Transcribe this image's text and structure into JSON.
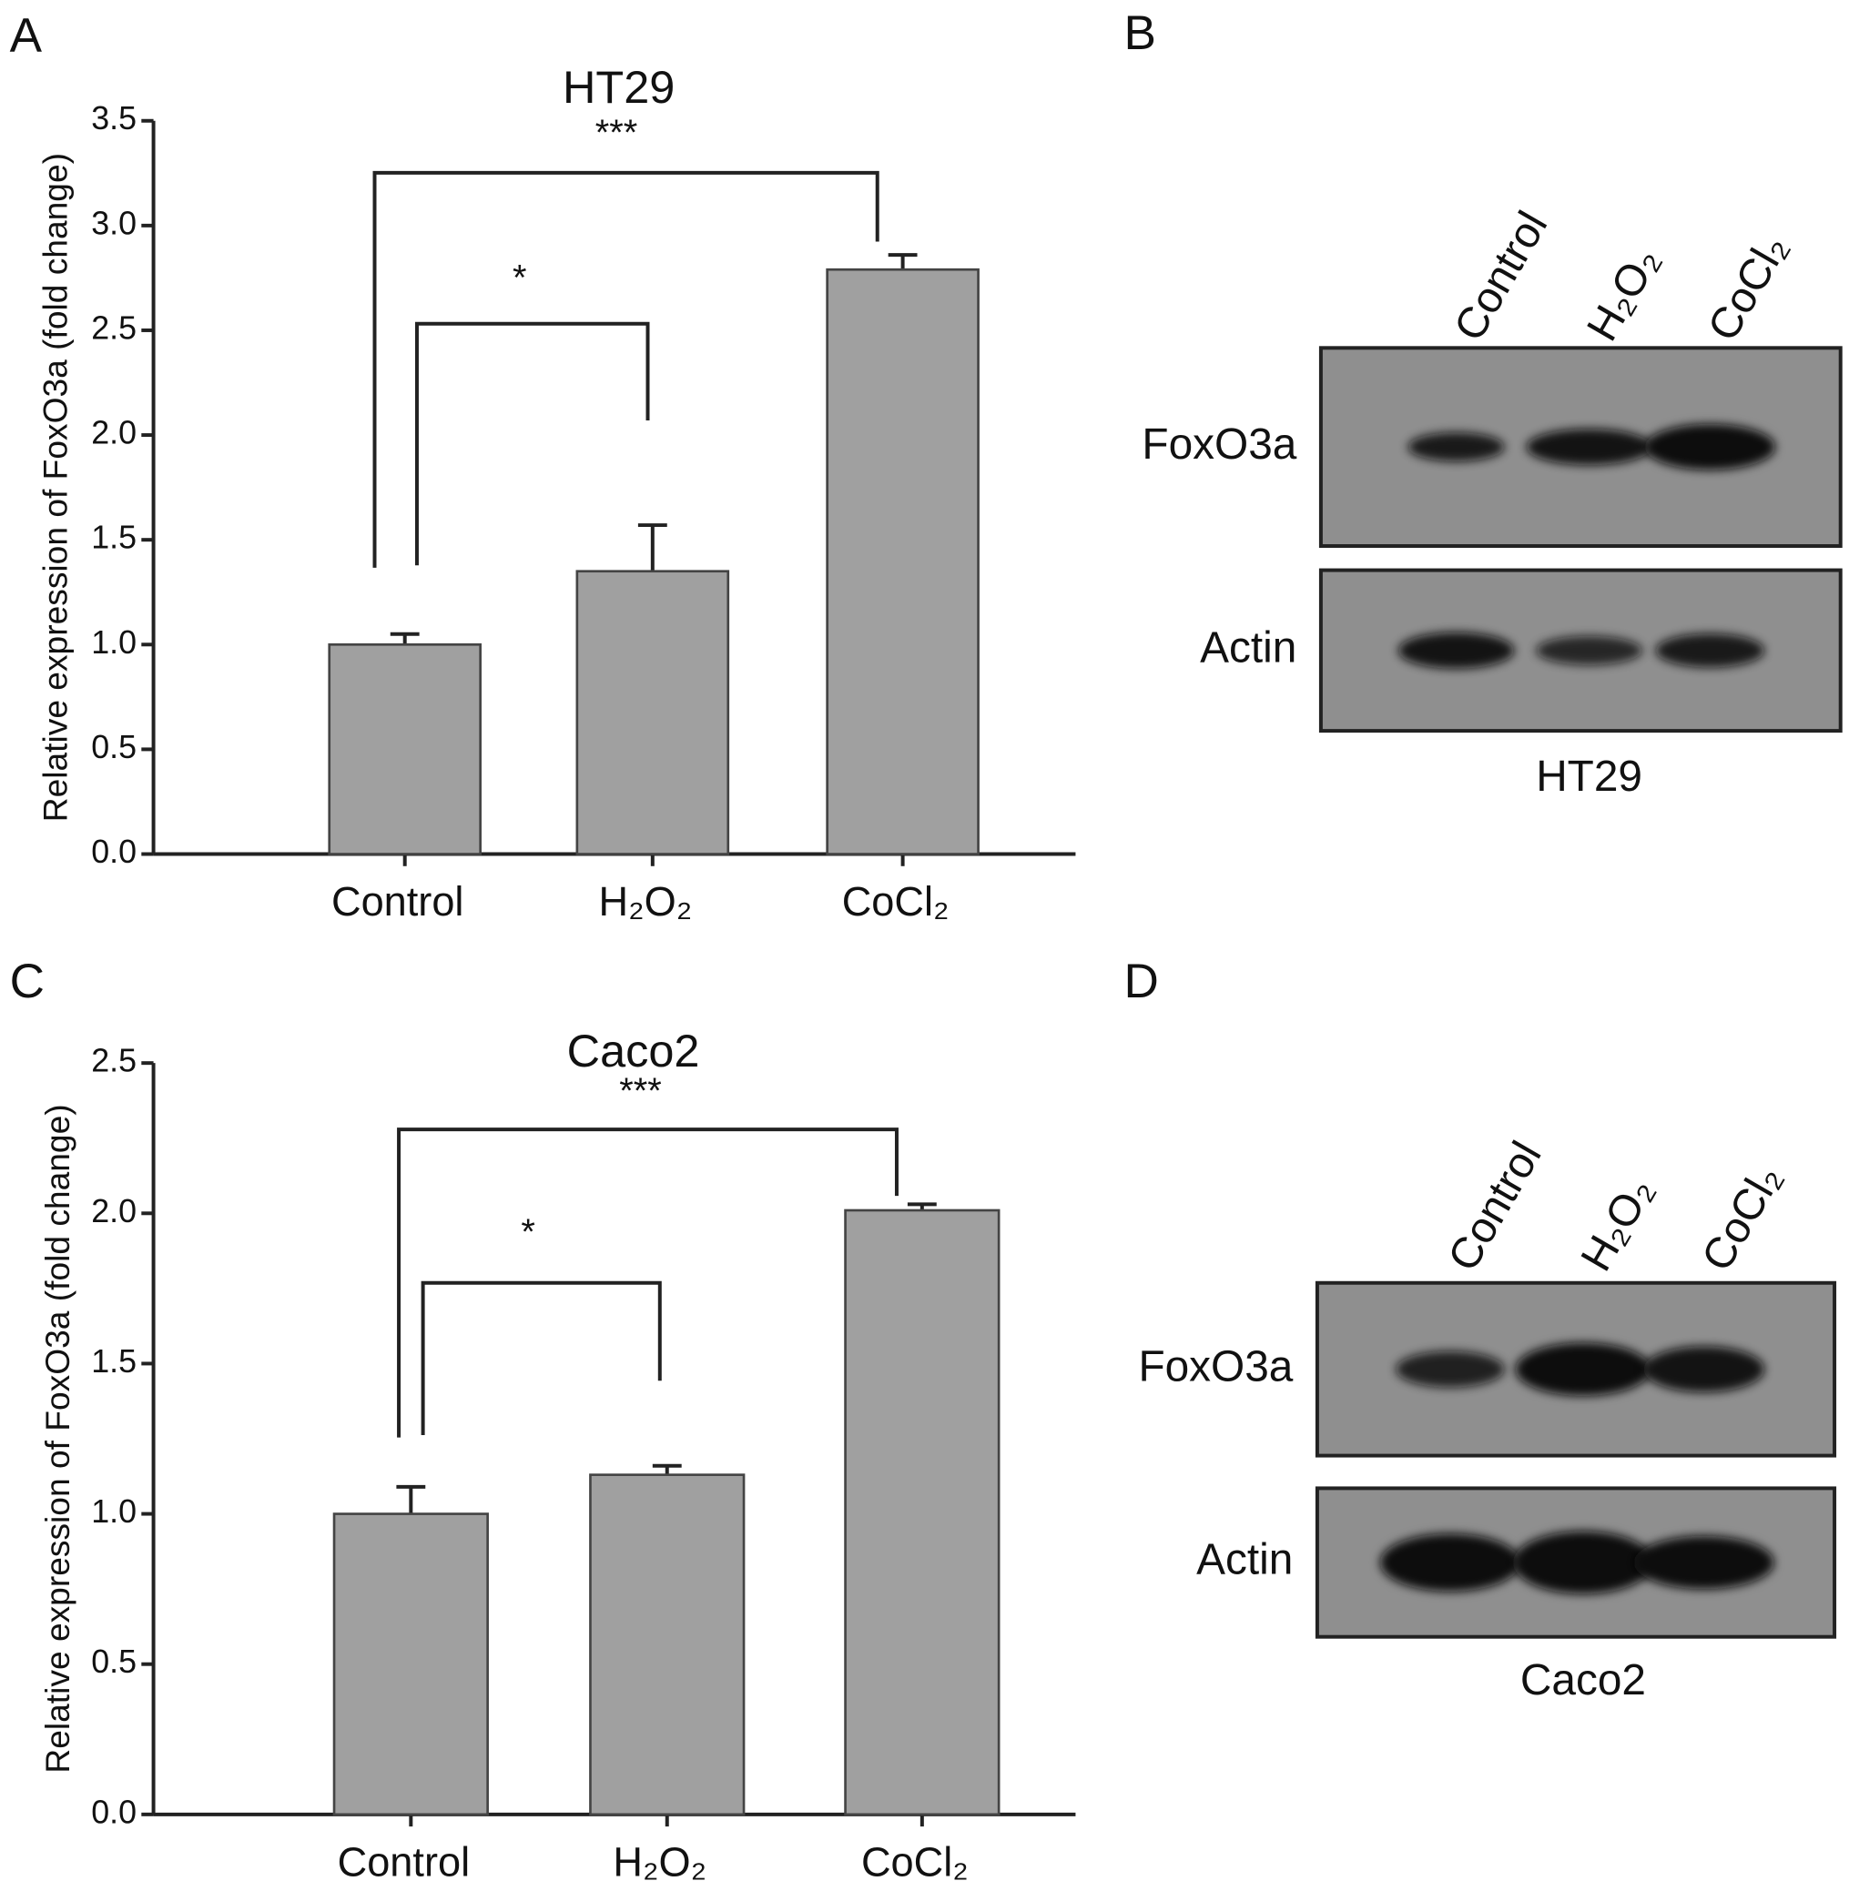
{
  "panels": [
    "A",
    "B",
    "C",
    "D"
  ],
  "chart_data": [
    {
      "type": "bar",
      "title": "HT29",
      "ylabel": "Relative expression of FoxO3a (fold change)",
      "categories": [
        "Control",
        "H₂O₂",
        "CoCl₂"
      ],
      "values": [
        1.0,
        1.35,
        2.79
      ],
      "errors": [
        0.05,
        0.22,
        0.07
      ],
      "color": "#a0a0a0",
      "ylim": [
        0,
        3.5
      ],
      "yticks": [
        {
          "value": 0,
          "label": "0.0"
        },
        0.5,
        {
          "value": 1,
          "label": "1.0"
        },
        1.5,
        {
          "value": 2,
          "label": "2.0"
        },
        2.5,
        {
          "value": 3,
          "label": "3.0"
        },
        3.5
      ],
      "annotations": [
        "*",
        "***"
      ]
    },
    {
      "type": "bar",
      "title": "Caco2",
      "ylabel": "Relative expression of FoxO3a (fold change)",
      "categories": [
        "Control",
        "H₂O₂",
        "CoCl₂"
      ],
      "values": [
        1.0,
        1.13,
        2.01
      ],
      "errors": [
        0.09,
        0.03,
        0.02
      ],
      "color": "#a0a0a0",
      "ylim": [
        0,
        2.5
      ],
      "yticks": [
        {
          "value": 0,
          "label": "0.0"
        },
        0.5,
        {
          "value": 1,
          "label": "1.0"
        },
        1.5,
        {
          "value": 2,
          "label": "2.0"
        },
        2.5
      ],
      "annotations": [
        "*",
        "***"
      ]
    }
  ],
  "blots": [
    {
      "lanes": [
        "Control",
        "H₂O₂",
        "CoCl₂"
      ],
      "rows": [
        "FoxO3a",
        "Actin"
      ],
      "cell_line": "HT29"
    },
    {
      "lanes": [
        "Control",
        "H₂O₂",
        "CoCl₂"
      ],
      "rows": [
        "FoxO3a",
        "Actin"
      ],
      "cell_line": "Caco2"
    }
  ]
}
